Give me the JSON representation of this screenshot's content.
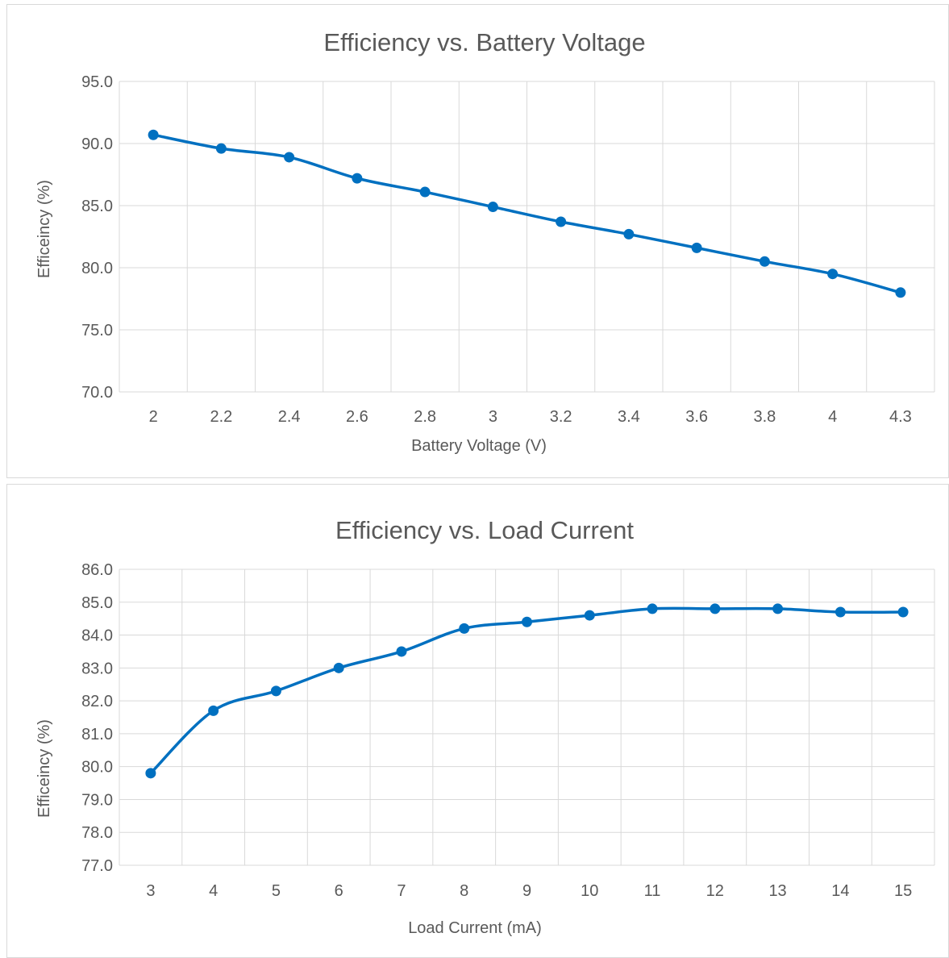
{
  "colors": {
    "series": "#0070C0",
    "grid": "#d9d9d9",
    "text": "#595959"
  },
  "chart_data": [
    {
      "type": "line",
      "title": "Efficiency vs. Battery Voltage",
      "xlabel": "Battery Voltage (V)",
      "ylabel": "Efficeincy (%)",
      "categories": [
        "2",
        "2.2",
        "2.4",
        "2.6",
        "2.8",
        "3",
        "3.2",
        "3.4",
        "3.6",
        "3.8",
        "4",
        "4.3"
      ],
      "values": [
        90.7,
        89.6,
        88.9,
        87.2,
        86.1,
        84.9,
        83.7,
        82.7,
        81.6,
        80.5,
        79.5,
        78.0
      ],
      "ylim": [
        70,
        95
      ],
      "yticks": [
        "70.0",
        "75.0",
        "80.0",
        "85.0",
        "90.0",
        "95.0"
      ],
      "grid": true,
      "marker": "circle"
    },
    {
      "type": "line",
      "title": "Efficiency vs. Load Current",
      "xlabel": "Load Current (mA)",
      "ylabel": "Efficeincy (%)",
      "categories": [
        "3",
        "4",
        "5",
        "6",
        "7",
        "8",
        "9",
        "10",
        "11",
        "12",
        "13",
        "14",
        "15"
      ],
      "values": [
        79.8,
        81.7,
        82.3,
        83.0,
        83.5,
        84.2,
        84.4,
        84.6,
        84.8,
        84.8,
        84.8,
        84.7,
        84.7
      ],
      "ylim": [
        77,
        86
      ],
      "yticks": [
        "77.0",
        "78.0",
        "79.0",
        "80.0",
        "81.0",
        "82.0",
        "83.0",
        "84.0",
        "85.0",
        "86.0"
      ],
      "grid": true,
      "marker": "circle"
    }
  ]
}
